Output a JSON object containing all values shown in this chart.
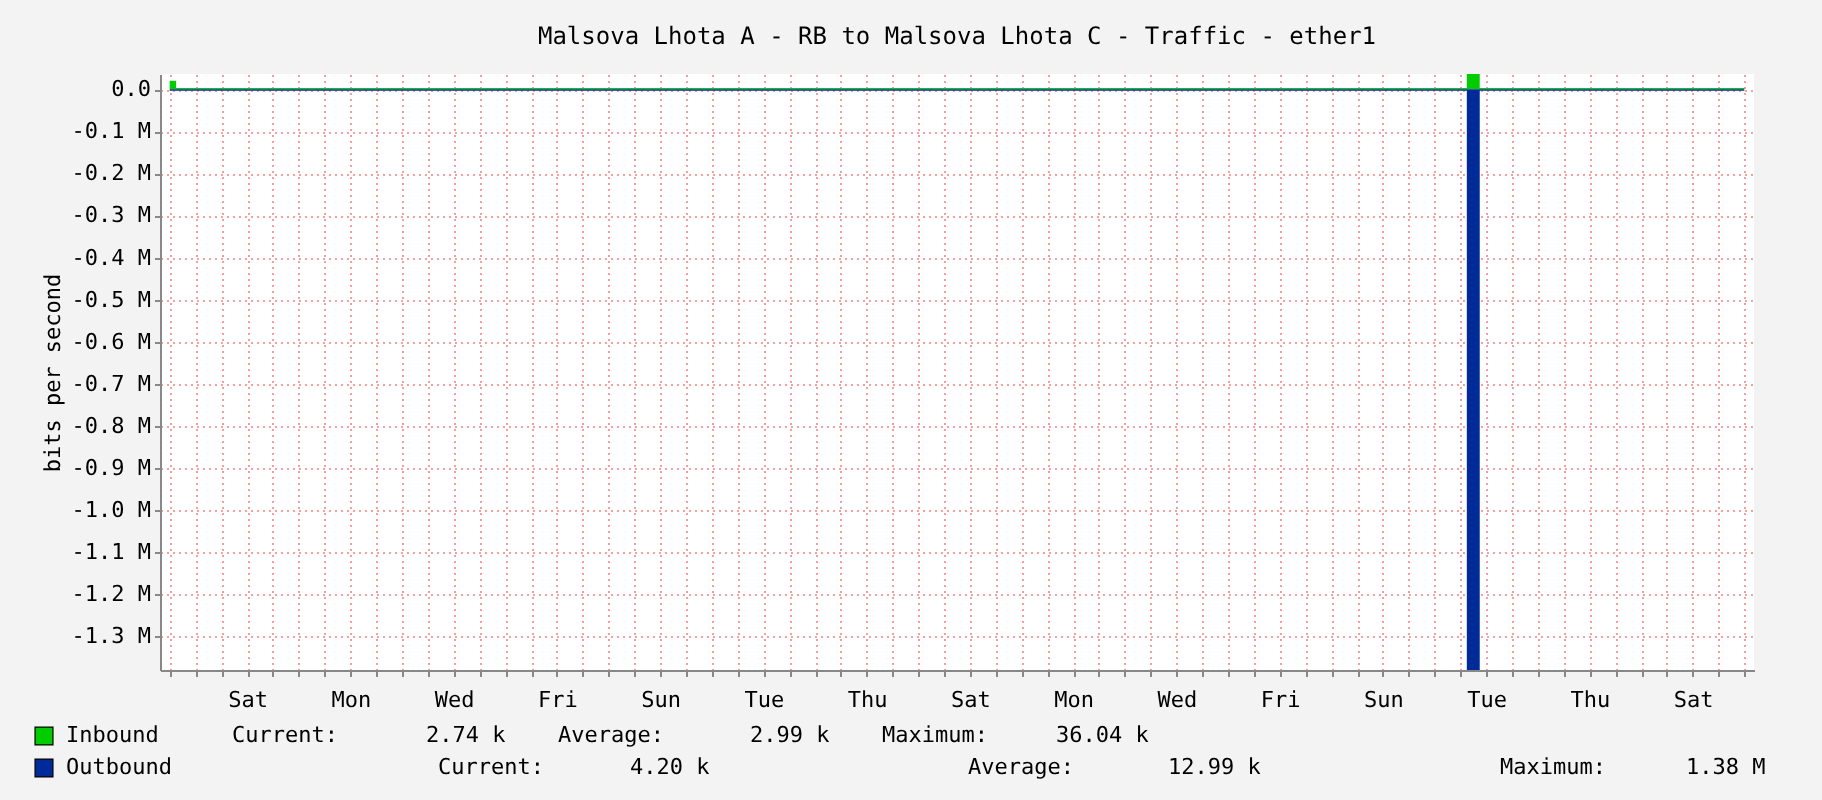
{
  "chart_data": {
    "type": "area",
    "title": "Malsova Lhota A - RB to Malsova Lhota C - Traffic - ether1",
    "ylabel": "bits per second",
    "categories": [
      null,
      null,
      null,
      null,
      null,
      null,
      "Sat",
      null,
      null,
      null,
      null,
      null,
      null,
      null,
      "Mon",
      null,
      null,
      null,
      null,
      null,
      null,
      null,
      "Wed",
      null,
      null,
      null,
      null,
      null,
      null,
      null,
      "Fri",
      null,
      null,
      null,
      null,
      null,
      null,
      null,
      "Sun",
      null,
      null,
      null,
      null,
      null,
      null,
      null,
      "Tue",
      null,
      null,
      null,
      null,
      null,
      null,
      null,
      "Thu",
      null,
      null,
      null,
      null,
      null,
      null,
      null,
      "Sat",
      null,
      null,
      null,
      null,
      null,
      null,
      null,
      "Mon",
      null,
      null,
      null,
      null,
      null,
      null,
      null,
      "Wed",
      null,
      null,
      null,
      null,
      null,
      null,
      null,
      "Fri",
      null,
      null,
      null,
      null,
      null,
      null,
      null,
      "Sun",
      null,
      null,
      null,
      null,
      null,
      null,
      null,
      "Tue",
      null,
      null,
      null,
      null,
      null,
      null,
      null,
      "Thu",
      null,
      null,
      null,
      null,
      null,
      null,
      null,
      "Sat",
      null,
      null,
      null,
      null
    ],
    "ylim": [
      -1.38,
      0.036
    ],
    "yticks": [
      {
        "value": 0,
        "label": "0.0"
      },
      {
        "value": -0.1,
        "label": "-0.1 M"
      },
      {
        "value": -0.2,
        "label": "-0.2 M"
      },
      {
        "value": -0.3,
        "label": "-0.3 M"
      },
      {
        "value": -0.4,
        "label": "-0.4 M"
      },
      {
        "value": -0.5,
        "label": "-0.5 M"
      },
      {
        "value": -0.6,
        "label": "-0.6 M"
      },
      {
        "value": -0.7,
        "label": "-0.7 M"
      },
      {
        "value": -0.8,
        "label": "-0.8 M"
      },
      {
        "value": -0.9,
        "label": "-0.9 M"
      },
      {
        "value": -1.0,
        "label": "-1.0 M"
      },
      {
        "value": -1.1,
        "label": "-1.1 M"
      },
      {
        "value": -1.2,
        "label": "-1.2 M"
      },
      {
        "value": -1.3,
        "label": "-1.3 M"
      }
    ],
    "grid": true,
    "legend": "bottom",
    "series": [
      {
        "name": "Inbound",
        "color": "#00cc00",
        "values": [
          0.02,
          0.003,
          0.003,
          0.003,
          0.003,
          0.003,
          0.003,
          0.003,
          0.003,
          0.003,
          0.003,
          0.003,
          0.003,
          0.003,
          0.003,
          0.003,
          0.003,
          0.003,
          0.003,
          0.003,
          0.003,
          0.003,
          0.003,
          0.003,
          0.003,
          0.003,
          0.003,
          0.003,
          0.003,
          0.003,
          0.003,
          0.003,
          0.003,
          0.003,
          0.003,
          0.003,
          0.003,
          0.003,
          0.003,
          0.003,
          0.003,
          0.003,
          0.003,
          0.003,
          0.003,
          0.003,
          0.003,
          0.003,
          0.003,
          0.003,
          0.003,
          0.003,
          0.003,
          0.003,
          0.003,
          0.003,
          0.003,
          0.003,
          0.003,
          0.003,
          0.003,
          0.003,
          0.003,
          0.003,
          0.003,
          0.003,
          0.003,
          0.003,
          0.003,
          0.003,
          0.003,
          0.003,
          0.003,
          0.003,
          0.003,
          0.003,
          0.003,
          0.003,
          0.003,
          0.003,
          0.003,
          0.003,
          0.003,
          0.003,
          0.003,
          0.003,
          0.003,
          0.003,
          0.003,
          0.003,
          0.003,
          0.003,
          0.003,
          0.003,
          0.003,
          0.003,
          0.003,
          0.003,
          0.003,
          0.003,
          0.003,
          0.036,
          0.003,
          0.003,
          0.003,
          0.003,
          0.003,
          0.003,
          0.003,
          0.003,
          0.003,
          0.003,
          0.003,
          0.003,
          0.003,
          0.003,
          0.003,
          0.003,
          0.003,
          0.003,
          0.003,
          0.003,
          0.003
        ]
      },
      {
        "name": "Outbound",
        "color": "#002a97",
        "values": [
          -0.004,
          -0.004,
          -0.004,
          -0.004,
          -0.004,
          -0.004,
          -0.004,
          -0.004,
          -0.004,
          -0.004,
          -0.004,
          -0.004,
          -0.004,
          -0.004,
          -0.004,
          -0.004,
          -0.004,
          -0.004,
          -0.004,
          -0.004,
          -0.004,
          -0.004,
          -0.004,
          -0.004,
          -0.004,
          -0.004,
          -0.004,
          -0.004,
          -0.004,
          -0.004,
          -0.004,
          -0.004,
          -0.004,
          -0.004,
          -0.004,
          -0.004,
          -0.004,
          -0.004,
          -0.004,
          -0.004,
          -0.004,
          -0.004,
          -0.004,
          -0.004,
          -0.004,
          -0.004,
          -0.004,
          -0.004,
          -0.004,
          -0.004,
          -0.004,
          -0.004,
          -0.004,
          -0.004,
          -0.004,
          -0.004,
          -0.004,
          -0.004,
          -0.004,
          -0.004,
          -0.004,
          -0.004,
          -0.004,
          -0.004,
          -0.004,
          -0.004,
          -0.004,
          -0.004,
          -0.004,
          -0.004,
          -0.004,
          -0.004,
          -0.004,
          -0.004,
          -0.004,
          -0.004,
          -0.004,
          -0.004,
          -0.004,
          -0.004,
          -0.004,
          -0.004,
          -0.004,
          -0.004,
          -0.004,
          -0.004,
          -0.004,
          -0.004,
          -0.004,
          -0.004,
          -0.004,
          -0.004,
          -0.004,
          -0.004,
          -0.004,
          -0.004,
          -0.004,
          -0.004,
          -0.004,
          -0.004,
          -0.004,
          -1.38,
          -0.004,
          -0.004,
          -0.004,
          -0.004,
          -0.004,
          -0.004,
          -0.004,
          -0.004,
          -0.004,
          -0.004,
          -0.004,
          -0.004,
          -0.004,
          -0.004,
          -0.004,
          -0.004,
          -0.004,
          -0.004,
          -0.004,
          -0.004,
          -0.004
        ]
      }
    ],
    "annotations": [
      "Current:",
      "2.74 k",
      "Average:",
      "2.99 k",
      "Maximum:",
      "36.04 k",
      "Current:",
      "4.20 k",
      "Average:",
      "12.99 k",
      "Maximum:",
      "1.38 M"
    ]
  }
}
